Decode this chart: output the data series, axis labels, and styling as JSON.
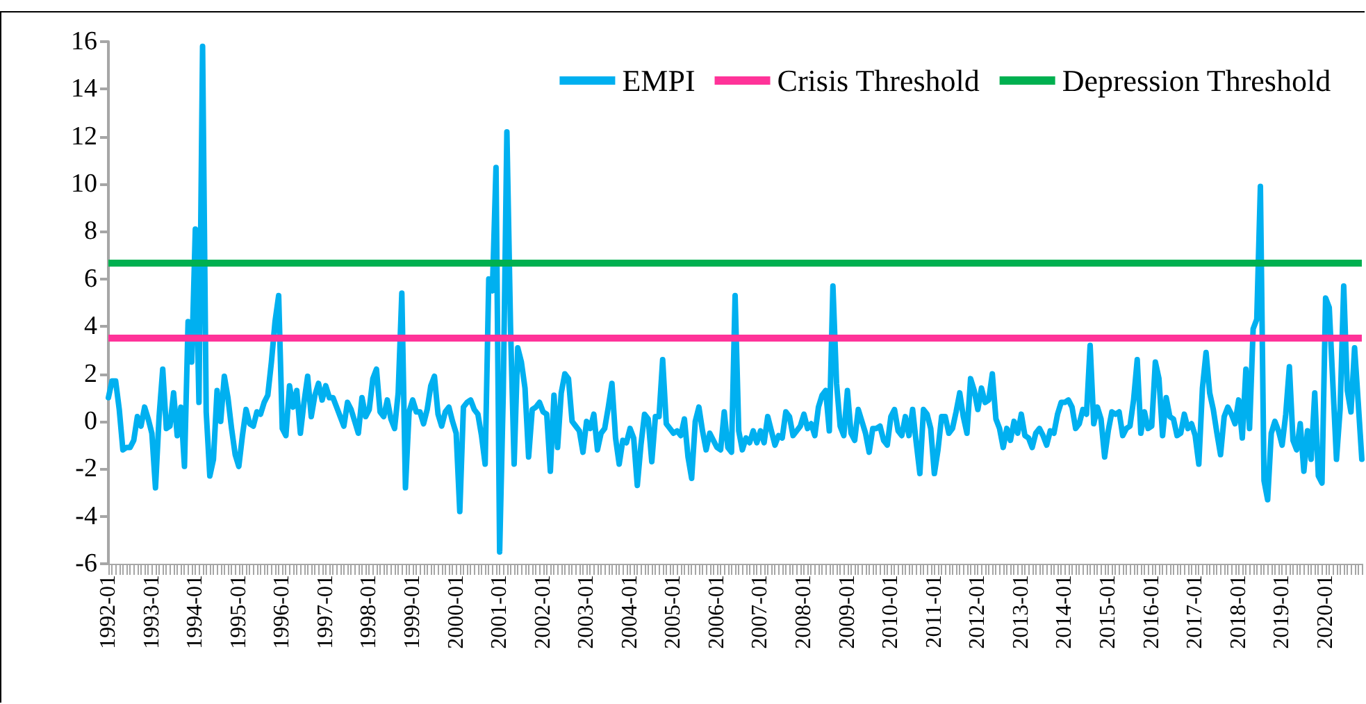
{
  "chart_data": {
    "type": "line",
    "categories": [
      "1992-01",
      null,
      null,
      null,
      null,
      null,
      null,
      null,
      null,
      null,
      null,
      null,
      "1993-01",
      null,
      null,
      null,
      null,
      null,
      null,
      null,
      null,
      null,
      null,
      null,
      "1994-01",
      null,
      null,
      null,
      null,
      null,
      null,
      null,
      null,
      null,
      null,
      null,
      "1995-01",
      null,
      null,
      null,
      null,
      null,
      null,
      null,
      null,
      null,
      null,
      null,
      "1996-01",
      null,
      null,
      null,
      null,
      null,
      null,
      null,
      null,
      null,
      null,
      null,
      "1997-01",
      null,
      null,
      null,
      null,
      null,
      null,
      null,
      null,
      null,
      null,
      null,
      "1998-01",
      null,
      null,
      null,
      null,
      null,
      null,
      null,
      null,
      null,
      null,
      null,
      "1999-01",
      null,
      null,
      null,
      null,
      null,
      null,
      null,
      null,
      null,
      null,
      null,
      "2000-01",
      null,
      null,
      null,
      null,
      null,
      null,
      null,
      null,
      null,
      null,
      null,
      "2001-01",
      null,
      null,
      null,
      null,
      null,
      null,
      null,
      null,
      null,
      null,
      null,
      "2002-01",
      null,
      null,
      null,
      null,
      null,
      null,
      null,
      null,
      null,
      null,
      null,
      "2003-01",
      null,
      null,
      null,
      null,
      null,
      null,
      null,
      null,
      null,
      null,
      null,
      "2004-01",
      null,
      null,
      null,
      null,
      null,
      null,
      null,
      null,
      null,
      null,
      null,
      "2005-01",
      null,
      null,
      null,
      null,
      null,
      null,
      null,
      null,
      null,
      null,
      null,
      "2006-01",
      null,
      null,
      null,
      null,
      null,
      null,
      null,
      null,
      null,
      null,
      null,
      "2007-01",
      null,
      null,
      null,
      null,
      null,
      null,
      null,
      null,
      null,
      null,
      null,
      "2008-01",
      null,
      null,
      null,
      null,
      null,
      null,
      null,
      null,
      null,
      null,
      null,
      "2009-01",
      null,
      null,
      null,
      null,
      null,
      null,
      null,
      null,
      null,
      null,
      null,
      "2010-01",
      null,
      null,
      null,
      null,
      null,
      null,
      null,
      null,
      null,
      null,
      null,
      "2011-01",
      null,
      null,
      null,
      null,
      null,
      null,
      null,
      null,
      null,
      null,
      null,
      "2012-01",
      null,
      null,
      null,
      null,
      null,
      null,
      null,
      null,
      null,
      null,
      null,
      "2013-01",
      null,
      null,
      null,
      null,
      null,
      null,
      null,
      null,
      null,
      null,
      null,
      "2014-01",
      null,
      null,
      null,
      null,
      null,
      null,
      null,
      null,
      null,
      null,
      null,
      "2015-01",
      null,
      null,
      null,
      null,
      null,
      null,
      null,
      null,
      null,
      null,
      null,
      "2016-01",
      null,
      null,
      null,
      null,
      null,
      null,
      null,
      null,
      null,
      null,
      null,
      "2017-01",
      null,
      null,
      null,
      null,
      null,
      null,
      null,
      null,
      null,
      null,
      null,
      "2018-01",
      null,
      null,
      null,
      null,
      null,
      null,
      null,
      null,
      null,
      null,
      null,
      "2019-01",
      null,
      null,
      null,
      null,
      null,
      null,
      null,
      null,
      null,
      null,
      null,
      "2020-01",
      null,
      null,
      null,
      null,
      null,
      null,
      null,
      null,
      null,
      null
    ],
    "series": [
      {
        "name": "EMPI",
        "color": "#00b0f0",
        "values": [
          1.0,
          1.7,
          1.7,
          0.5,
          -1.2,
          -1.1,
          -1.1,
          -0.8,
          0.2,
          -0.2,
          0.6,
          0.1,
          -0.5,
          -2.8,
          0.2,
          2.2,
          -0.3,
          -0.2,
          1.2,
          -0.6,
          0.6,
          -1.9,
          4.2,
          2.5,
          8.1,
          0.8,
          15.8,
          0.4,
          -2.3,
          -1.6,
          1.3,
          0.0,
          1.9,
          1.0,
          -0.3,
          -1.4,
          -1.9,
          -0.6,
          0.5,
          -0.1,
          -0.2,
          0.4,
          0.3,
          0.8,
          1.1,
          2.5,
          4.2,
          5.3,
          -0.3,
          -0.6,
          1.5,
          0.6,
          1.3,
          -0.5,
          0.8,
          1.9,
          0.2,
          1.1,
          1.6,
          0.9,
          1.5,
          1.0,
          1.0,
          0.6,
          0.2,
          -0.2,
          0.8,
          0.5,
          0.0,
          -0.5,
          1.0,
          0.2,
          0.5,
          1.8,
          2.2,
          0.4,
          0.2,
          0.9,
          0.1,
          -0.3,
          1.2,
          5.4,
          -2.8,
          0.4,
          0.9,
          0.4,
          0.4,
          -0.1,
          0.5,
          1.5,
          1.9,
          0.3,
          -0.2,
          0.4,
          0.6,
          0.0,
          -0.5,
          -3.8,
          0.6,
          0.8,
          0.9,
          0.5,
          0.3,
          -0.6,
          -1.8,
          6.0,
          5.5,
          10.7,
          -5.5,
          1.2,
          12.2,
          4.0,
          -1.8,
          3.1,
          2.5,
          1.4,
          -1.5,
          0.5,
          0.6,
          0.8,
          0.4,
          0.3,
          -2.1,
          1.1,
          -1.1,
          1.2,
          2.0,
          1.8,
          0.0,
          -0.2,
          -0.4,
          -1.3,
          0.0,
          -0.3,
          0.3,
          -1.2,
          -0.5,
          -0.3,
          0.6,
          1.6,
          -0.7,
          -1.8,
          -0.8,
          -0.9,
          -0.3,
          -0.7,
          -2.7,
          -1.0,
          0.3,
          0.1,
          -1.7,
          0.2,
          0.2,
          2.6,
          -0.1,
          -0.3,
          -0.5,
          -0.4,
          -0.6,
          0.1,
          -1.5,
          -2.4,
          0.0,
          0.6,
          -0.4,
          -1.2,
          -0.5,
          -0.8,
          -1.1,
          -1.2,
          0.4,
          -1.1,
          -1.3,
          5.3,
          -0.4,
          -1.2,
          -0.7,
          -0.9,
          -0.4,
          -0.9,
          -0.4,
          -0.9,
          0.2,
          -0.4,
          -1.0,
          -0.6,
          -0.7,
          0.4,
          0.2,
          -0.6,
          -0.4,
          -0.2,
          0.3,
          -0.3,
          -0.1,
          -0.6,
          0.6,
          1.1,
          1.3,
          -0.4,
          5.7,
          1.6,
          -0.2,
          -0.6,
          1.3,
          -0.5,
          -0.8,
          0.5,
          0.0,
          -0.5,
          -1.3,
          -0.3,
          -0.3,
          -0.2,
          -0.8,
          -1.0,
          0.2,
          0.5,
          -0.4,
          -0.6,
          0.2,
          -0.6,
          0.5,
          -0.9,
          -2.2,
          0.5,
          0.3,
          -0.3,
          -2.2,
          -1.2,
          0.2,
          0.2,
          -0.5,
          -0.3,
          0.4,
          1.2,
          0.2,
          -0.5,
          1.8,
          1.3,
          0.5,
          1.4,
          0.8,
          0.9,
          2.0,
          0.1,
          -0.3,
          -1.1,
          -0.3,
          -0.8,
          0.0,
          -0.5,
          0.3,
          -0.6,
          -0.7,
          -1.1,
          -0.5,
          -0.3,
          -0.6,
          -1.0,
          -0.4,
          -0.5,
          0.3,
          0.8,
          0.8,
          0.9,
          0.6,
          -0.3,
          -0.1,
          0.5,
          0.3,
          3.2,
          -0.1,
          0.6,
          0.1,
          -1.5,
          -0.4,
          0.4,
          0.3,
          0.4,
          -0.6,
          -0.3,
          -0.2,
          0.9,
          2.6,
          -0.5,
          0.4,
          -0.3,
          -0.2,
          2.5,
          1.8,
          -0.6,
          1.0,
          0.2,
          0.1,
          -0.6,
          -0.5,
          0.3,
          -0.3,
          -0.1,
          -0.6,
          -1.8,
          1.4,
          2.9,
          1.2,
          0.5,
          -0.5,
          -1.4,
          0.2,
          0.6,
          0.3,
          -0.1,
          0.9,
          -0.7,
          2.2,
          -0.3,
          3.9,
          4.3,
          9.9,
          -2.5,
          -3.3,
          -0.5,
          0.0,
          -0.4,
          -1.0,
          0.3,
          2.3,
          -0.8,
          -1.2,
          -0.1,
          -2.1,
          -0.4,
          -1.6,
          1.2,
          -2.3,
          -2.6,
          5.2,
          4.8,
          1.6,
          -1.6,
          0.5,
          5.7,
          1.3,
          0.4,
          3.1,
          0.8,
          -1.6
        ]
      }
    ],
    "ref_lines": [
      {
        "axis": "y",
        "value": 3.5,
        "label": "Crisis Threshold",
        "color": "#ff3399"
      },
      {
        "axis": "y",
        "value": 6.7,
        "label": "Depression Threshold",
        "color": "#00b050"
      }
    ],
    "ylim": [
      -6,
      16
    ],
    "yticks": [
      -6,
      -4,
      -2,
      0,
      2,
      4,
      6,
      8,
      10,
      12,
      14,
      16
    ],
    "grid": false,
    "legend": "top right",
    "marker": "none",
    "line_style": "solid"
  }
}
